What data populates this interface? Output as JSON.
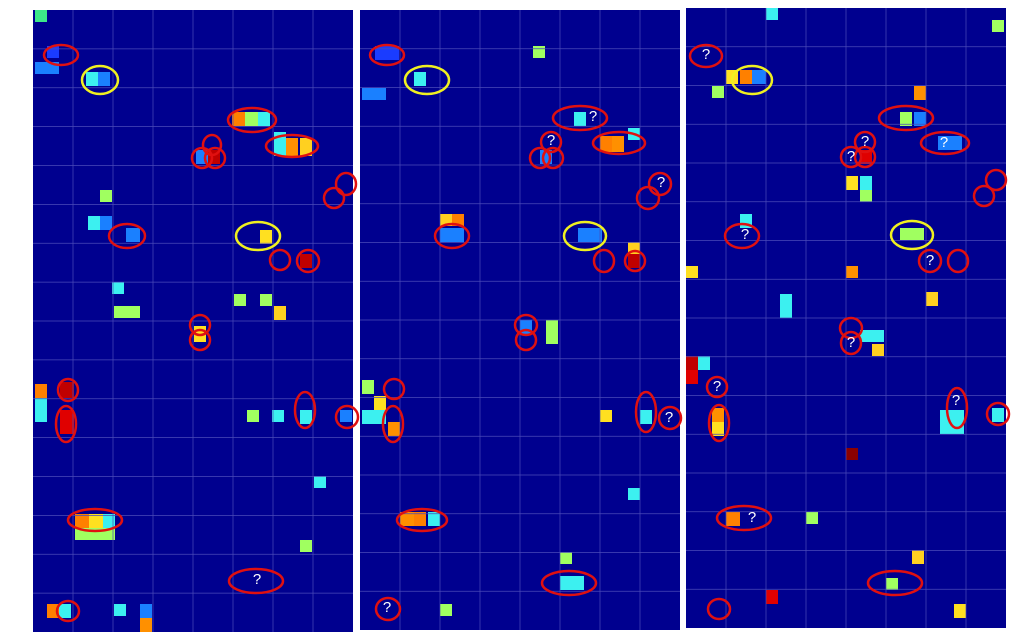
{
  "panels": [
    {
      "labels": [
        "?"
      ]
    },
    {
      "labels": [
        "?",
        "?",
        "?",
        "?",
        "?"
      ]
    },
    {
      "labels": [
        "?",
        "?",
        "?",
        "?",
        "?",
        "?",
        "?",
        "?",
        "?",
        "?"
      ]
    }
  ]
}
